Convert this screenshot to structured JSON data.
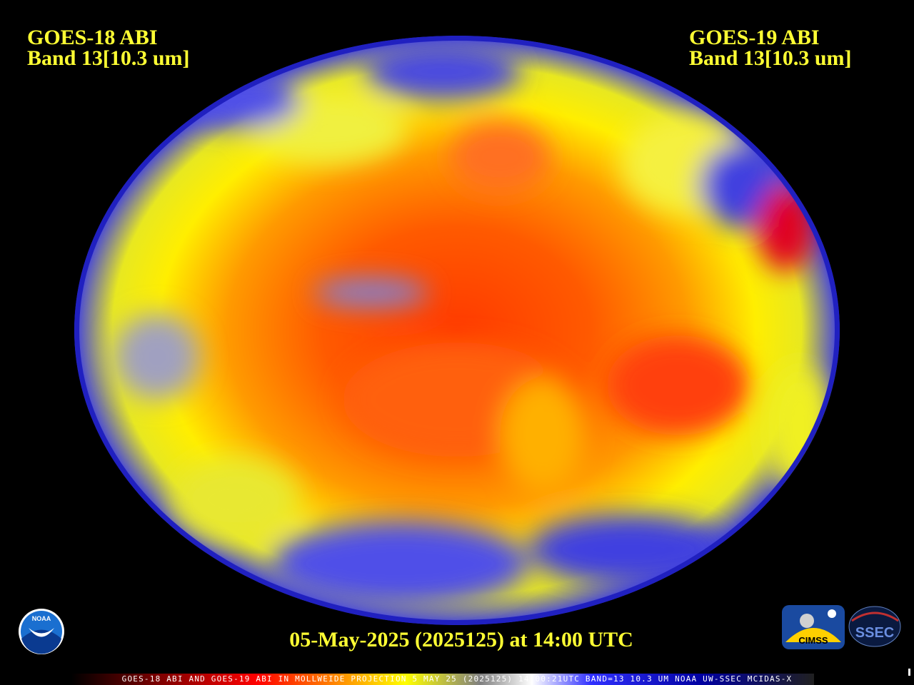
{
  "left_label": {
    "line1": "GOES-18 ABI",
    "line2": "Band 13[10.3 um]"
  },
  "right_label": {
    "line1": "GOES-19 ABI",
    "line2": "Band 13[10.3 um]"
  },
  "timestamp": "05-May-2025 (2025125) at 14:00 UTC",
  "caption": "GOES-18 ABI AND GOES-19 ABI IN MOLLWEIDE PROJECTION 5 MAY 25 (2025125) 14:00:21UTC BAND=13 10.3 UM NOAA UW-SSEC MCIDAS-X",
  "logos": {
    "noaa": "NOAA",
    "cimss": "CIMSS",
    "ssec": "SSEC"
  }
}
